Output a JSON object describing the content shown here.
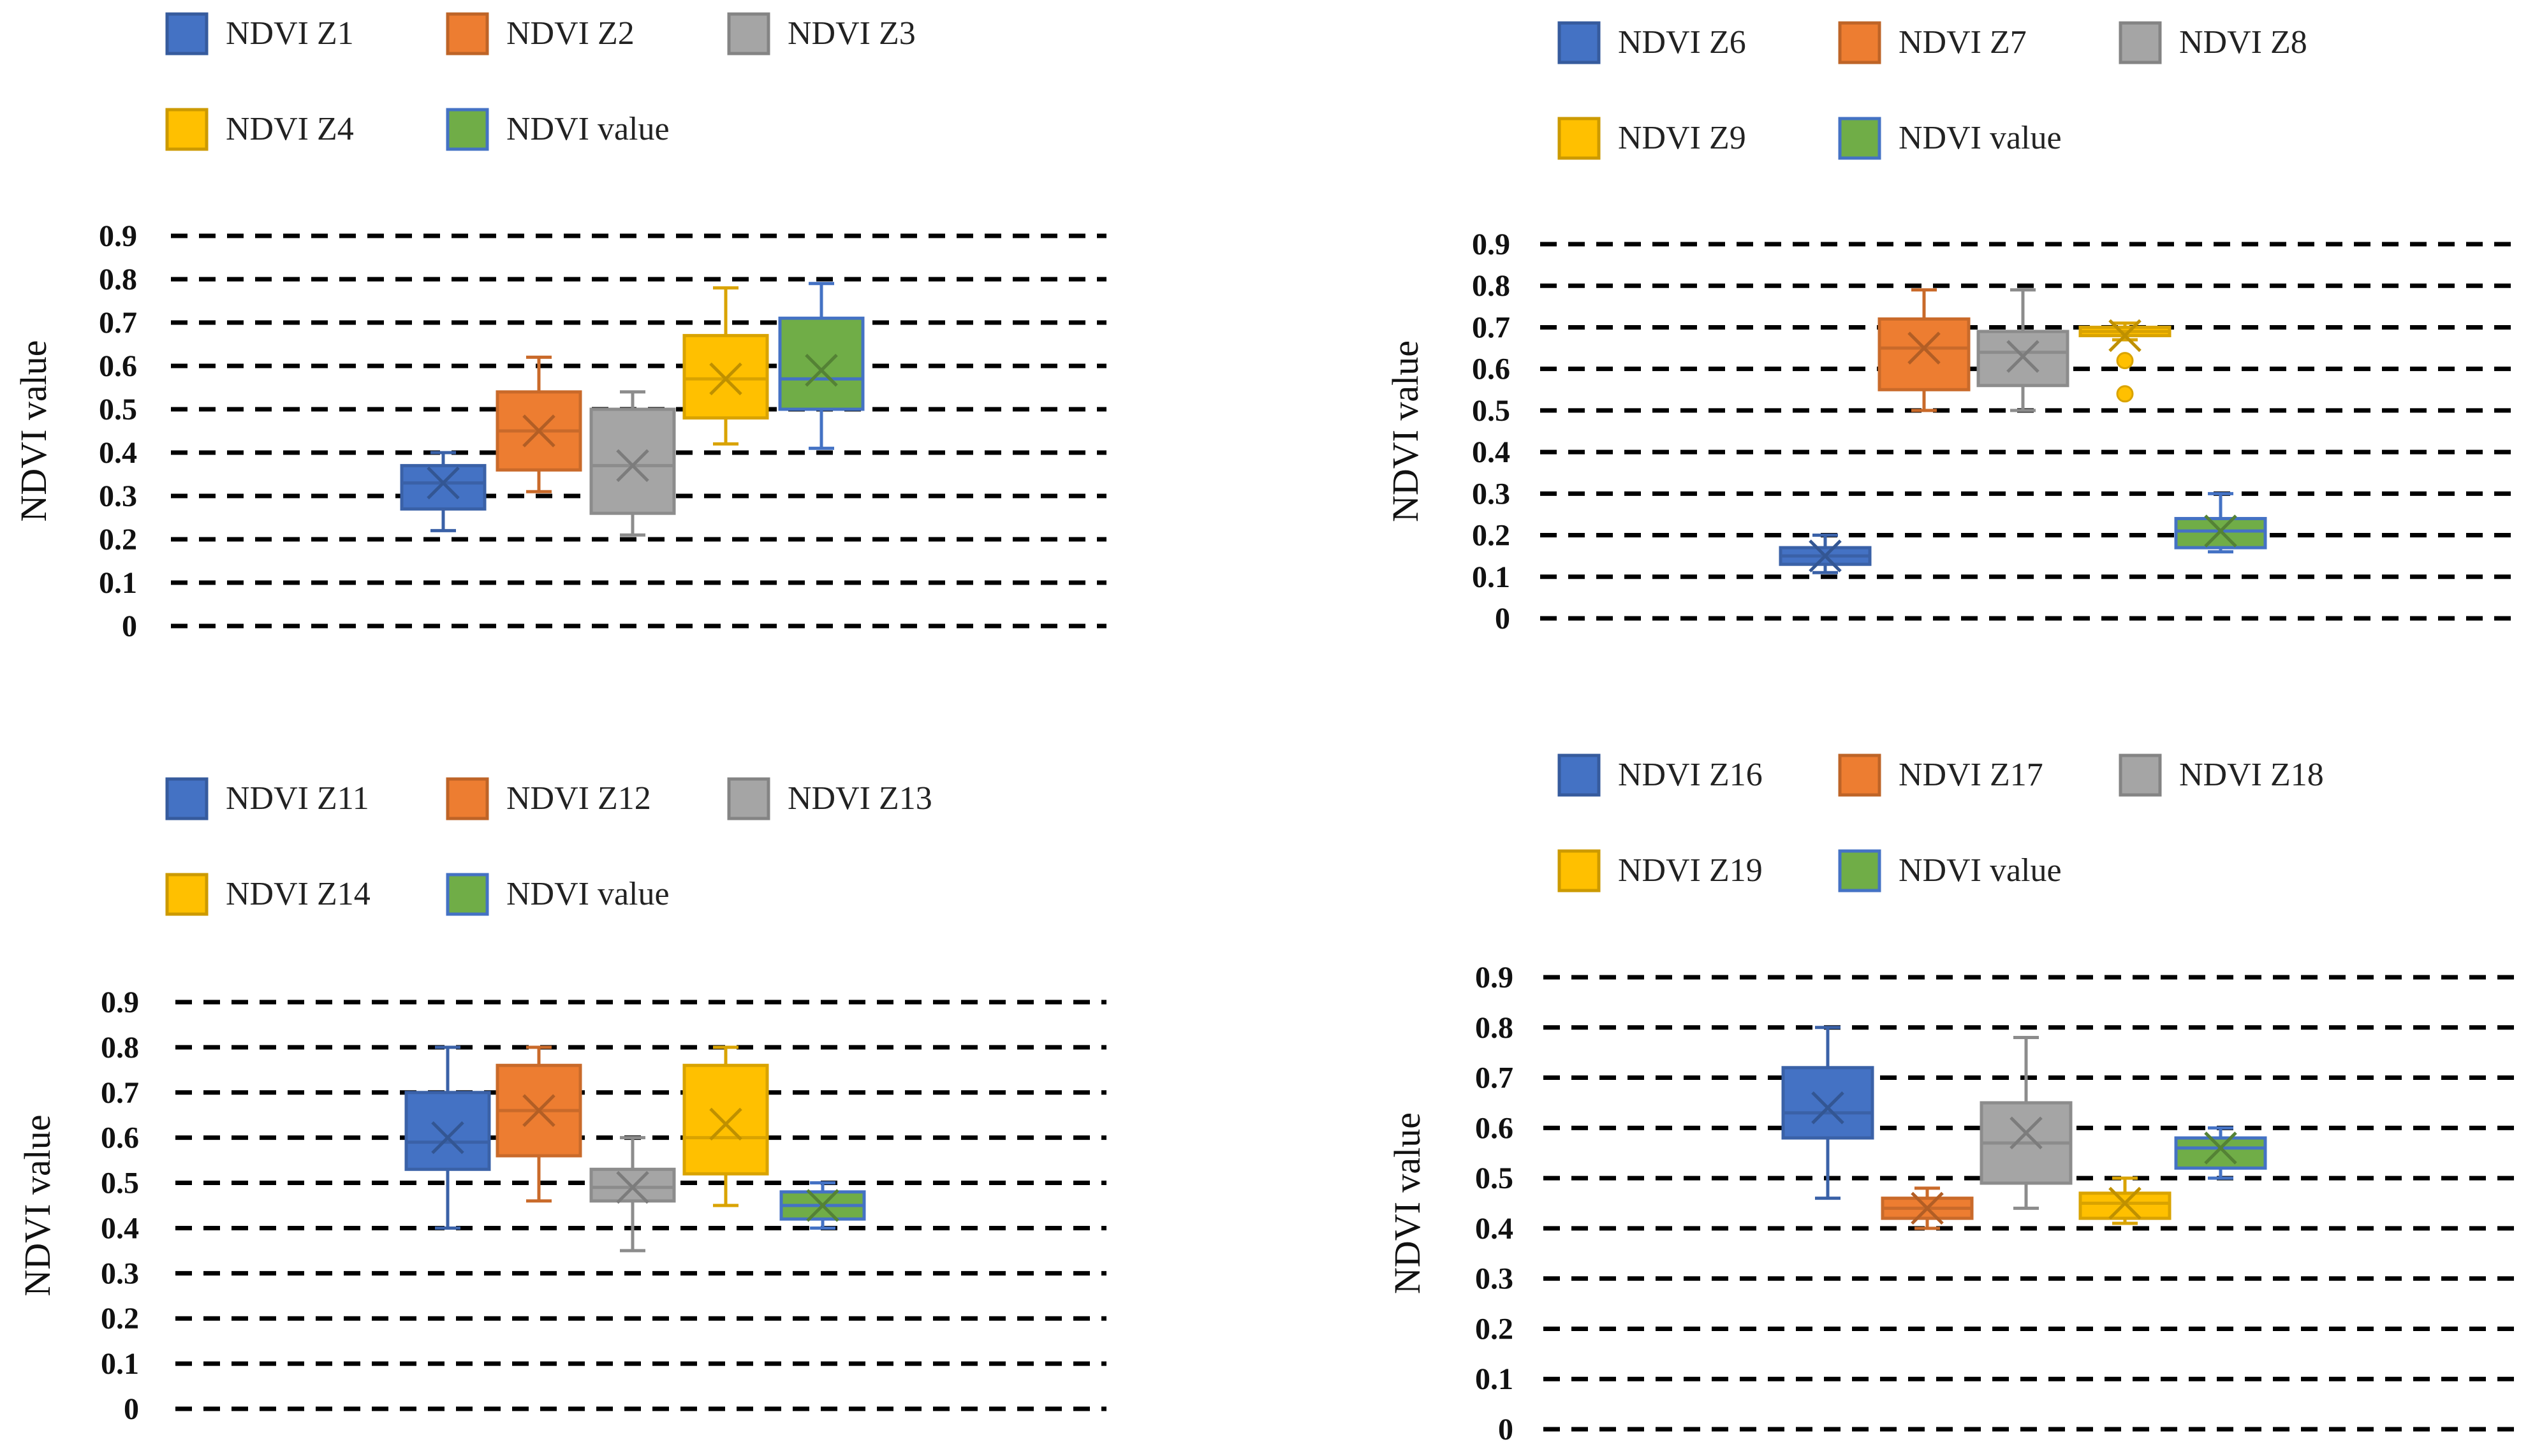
{
  "chart_data": [
    {
      "type": "box",
      "ylabel": "NDVI value",
      "ylim": [
        0,
        0.9
      ],
      "yticks": [
        "0",
        "0.1",
        "0.2",
        "0.3",
        "0.4",
        "0.5",
        "0.6",
        "0.7",
        "0.8",
        "0.9"
      ],
      "grid": true,
      "legend_position": "top",
      "series": [
        {
          "name": "NDVI Z1",
          "color": "#4472C4",
          "min": 0.22,
          "q1": 0.27,
          "median": 0.33,
          "q3": 0.37,
          "max": 0.4,
          "mean": 0.33,
          "outliers": []
        },
        {
          "name": "NDVI Z2",
          "color": "#ED7D31",
          "min": 0.31,
          "q1": 0.36,
          "median": 0.45,
          "q3": 0.54,
          "max": 0.62,
          "mean": 0.45,
          "outliers": []
        },
        {
          "name": "NDVI Z3",
          "color": "#A5A5A5",
          "min": 0.21,
          "q1": 0.26,
          "median": 0.37,
          "q3": 0.5,
          "max": 0.54,
          "mean": 0.37,
          "outliers": []
        },
        {
          "name": "NDVI Z4",
          "color": "#FFC000",
          "min": 0.42,
          "q1": 0.48,
          "median": 0.57,
          "q3": 0.67,
          "max": 0.78,
          "mean": 0.57,
          "outliers": []
        },
        {
          "name": "NDVI value",
          "color": "#70AD47",
          "min": 0.41,
          "q1": 0.5,
          "median": 0.57,
          "q3": 0.71,
          "max": 0.79,
          "mean": 0.59,
          "outliers": []
        }
      ]
    },
    {
      "type": "box",
      "ylabel": "NDVI value",
      "ylim": [
        0,
        0.9
      ],
      "yticks": [
        "0",
        "0.1",
        "0.2",
        "0.3",
        "0.4",
        "0.5",
        "0.6",
        "0.7",
        "0.8",
        "0.9"
      ],
      "grid": true,
      "legend_position": "top",
      "series": [
        {
          "name": "NDVI Z6",
          "color": "#4472C4",
          "min": 0.11,
          "q1": 0.13,
          "median": 0.15,
          "q3": 0.17,
          "max": 0.2,
          "mean": 0.15,
          "outliers": []
        },
        {
          "name": "NDVI Z7",
          "color": "#ED7D31",
          "min": 0.5,
          "q1": 0.55,
          "median": 0.65,
          "q3": 0.72,
          "max": 0.79,
          "mean": 0.65,
          "outliers": []
        },
        {
          "name": "NDVI Z8",
          "color": "#A5A5A5",
          "min": 0.5,
          "q1": 0.56,
          "median": 0.64,
          "q3": 0.69,
          "max": 0.79,
          "mean": 0.63,
          "outliers": []
        },
        {
          "name": "NDVI Z9",
          "color": "#FFC000",
          "min": 0.67,
          "q1": 0.68,
          "median": 0.69,
          "q3": 0.7,
          "max": 0.71,
          "mean": 0.68,
          "outliers": [
            0.62,
            0.54
          ]
        },
        {
          "name": "NDVI value",
          "color": "#70AD47",
          "min": 0.16,
          "q1": 0.17,
          "median": 0.21,
          "q3": 0.24,
          "max": 0.3,
          "mean": 0.21,
          "outliers": []
        }
      ]
    },
    {
      "type": "box",
      "ylabel": "NDVI value",
      "ylim": [
        0,
        0.9
      ],
      "yticks": [
        "0",
        "0.1",
        "0.2",
        "0.3",
        "0.4",
        "0.5",
        "0.6",
        "0.7",
        "0.8",
        "0.9"
      ],
      "grid": true,
      "legend_position": "top",
      "series": [
        {
          "name": "NDVI Z11",
          "color": "#4472C4",
          "min": 0.4,
          "q1": 0.53,
          "median": 0.59,
          "q3": 0.7,
          "max": 0.8,
          "mean": 0.6,
          "outliers": []
        },
        {
          "name": "NDVI Z12",
          "color": "#ED7D31",
          "min": 0.46,
          "q1": 0.56,
          "median": 0.66,
          "q3": 0.76,
          "max": 0.8,
          "mean": 0.66,
          "outliers": []
        },
        {
          "name": "NDVI Z13",
          "color": "#A5A5A5",
          "min": 0.35,
          "q1": 0.46,
          "median": 0.49,
          "q3": 0.53,
          "max": 0.6,
          "mean": 0.49,
          "outliers": []
        },
        {
          "name": "NDVI Z14",
          "color": "#FFC000",
          "min": 0.45,
          "q1": 0.52,
          "median": 0.6,
          "q3": 0.76,
          "max": 0.8,
          "mean": 0.63,
          "outliers": []
        },
        {
          "name": "NDVI value",
          "color": "#70AD47",
          "min": 0.4,
          "q1": 0.42,
          "median": 0.45,
          "q3": 0.48,
          "max": 0.5,
          "mean": 0.45,
          "outliers": []
        }
      ]
    },
    {
      "type": "box",
      "ylabel": "NDVI value",
      "ylim": [
        0,
        0.9
      ],
      "yticks": [
        "0",
        "0.1",
        "0.2",
        "0.3",
        "0.4",
        "0.5",
        "0.6",
        "0.7",
        "0.8",
        "0.9"
      ],
      "grid": true,
      "legend_position": "top",
      "series": [
        {
          "name": "NDVI Z16",
          "color": "#4472C4",
          "min": 0.46,
          "q1": 0.58,
          "median": 0.63,
          "q3": 0.72,
          "max": 0.8,
          "mean": 0.64,
          "outliers": []
        },
        {
          "name": "NDVI Z17",
          "color": "#ED7D31",
          "min": 0.4,
          "q1": 0.42,
          "median": 0.44,
          "q3": 0.46,
          "max": 0.48,
          "mean": 0.44,
          "outliers": []
        },
        {
          "name": "NDVI Z18",
          "color": "#A5A5A5",
          "min": 0.44,
          "q1": 0.49,
          "median": 0.57,
          "q3": 0.65,
          "max": 0.78,
          "mean": 0.59,
          "outliers": []
        },
        {
          "name": "NDVI Z19",
          "color": "#FFC000",
          "min": 0.41,
          "q1": 0.42,
          "median": 0.45,
          "q3": 0.47,
          "max": 0.5,
          "mean": 0.45,
          "outliers": []
        },
        {
          "name": "NDVI value",
          "color": "#70AD47",
          "min": 0.5,
          "q1": 0.52,
          "median": 0.56,
          "q3": 0.58,
          "max": 0.6,
          "mean": 0.56,
          "outliers": []
        }
      ]
    }
  ]
}
